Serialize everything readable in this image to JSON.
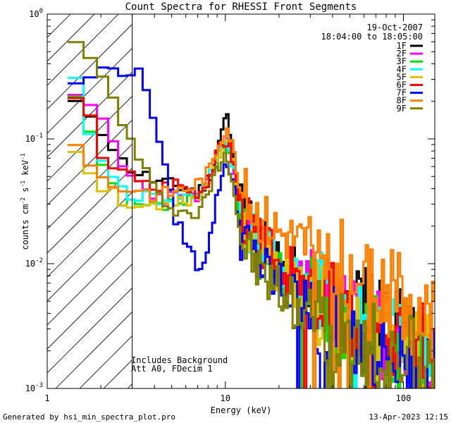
{
  "chart_data": {
    "type": "line",
    "title": "Count Spectra for RHESSI Front Segments",
    "xlabel": "Energy (keV)",
    "ylabel_parts": {
      "a": "counts cm",
      "b": "-2",
      "c": " s",
      "d": "-1",
      "e": " keV",
      "f": "-1"
    },
    "xscale": "log",
    "yscale": "log",
    "xlim": [
      1.0,
      150.0
    ],
    "ylim": [
      0.001,
      1.0
    ],
    "x_ticks": [
      {
        "value": 1,
        "label": "1"
      },
      {
        "value": 10,
        "label": "10"
      },
      {
        "value": 100,
        "label": "100"
      }
    ],
    "y_ticks": [
      {
        "value": 0.001,
        "base": "10",
        "exp": "-3"
      },
      {
        "value": 0.01,
        "base": "10",
        "exp": "-2"
      },
      {
        "value": 0.1,
        "base": "10",
        "exp": "-1"
      },
      {
        "value": 1.0,
        "base": "10",
        "exp": "0"
      }
    ],
    "hatch_region_kev": [
      1.0,
      3.0
    ],
    "date": "19-Oct-2007",
    "time_range": "18:04:00 to 18:05:00",
    "annotations": [
      "Includes Background",
      "Att A0, FDecim 1"
    ],
    "legend_position": "top-right",
    "series": [
      {
        "name": "1F",
        "color": "#000000",
        "seed": 11,
        "points": [
          [
            1.3,
            0.18
          ],
          [
            1.6,
            0.16
          ],
          [
            2.0,
            0.11
          ],
          [
            2.5,
            0.065
          ],
          [
            3.0,
            0.055
          ],
          [
            4.0,
            0.045
          ],
          [
            5.0,
            0.042
          ],
          [
            6.0,
            0.04
          ],
          [
            7.0,
            0.038
          ],
          [
            8.0,
            0.05
          ],
          [
            9.0,
            0.09
          ],
          [
            10.0,
            0.16
          ],
          [
            11.0,
            0.07
          ],
          [
            12.0,
            0.03
          ],
          [
            15.0,
            0.017
          ],
          [
            20.0,
            0.011
          ],
          [
            30.0,
            0.007
          ],
          [
            40.0,
            0.005
          ],
          [
            50.0,
            0.0045
          ],
          [
            60.0,
            0.004
          ],
          [
            80.0,
            0.0035
          ],
          [
            100.0,
            0.0032
          ],
          [
            120.0,
            0.0026
          ],
          [
            140.0,
            0.0022
          ]
        ]
      },
      {
        "name": "2F",
        "color": "#ff00ff",
        "seed": 23,
        "points": [
          [
            1.3,
            0.2
          ],
          [
            1.6,
            0.17
          ],
          [
            2.0,
            0.13
          ],
          [
            2.5,
            0.06
          ],
          [
            3.0,
            0.045
          ],
          [
            4.0,
            0.035
          ],
          [
            5.0,
            0.034
          ],
          [
            6.0,
            0.033
          ],
          [
            7.0,
            0.033
          ],
          [
            8.0,
            0.045
          ],
          [
            9.0,
            0.075
          ],
          [
            10.0,
            0.1
          ],
          [
            11.0,
            0.06
          ],
          [
            12.0,
            0.025
          ],
          [
            15.0,
            0.014
          ],
          [
            20.0,
            0.009
          ],
          [
            30.0,
            0.006
          ],
          [
            40.0,
            0.0042
          ],
          [
            50.0,
            0.0036
          ],
          [
            60.0,
            0.003
          ],
          [
            80.0,
            0.0026
          ],
          [
            100.0,
            0.0022
          ],
          [
            120.0,
            0.0018
          ],
          [
            140.0,
            0.0016
          ]
        ]
      },
      {
        "name": "3F",
        "color": "#00e000",
        "seed": 37,
        "points": [
          [
            1.3,
            0.21
          ],
          [
            1.6,
            0.1
          ],
          [
            2.0,
            0.05
          ],
          [
            2.5,
            0.03
          ],
          [
            3.0,
            0.028
          ],
          [
            4.0,
            0.028
          ],
          [
            5.0,
            0.03
          ],
          [
            6.0,
            0.031
          ],
          [
            7.0,
            0.032
          ],
          [
            8.0,
            0.045
          ],
          [
            9.0,
            0.075
          ],
          [
            10.0,
            0.09
          ],
          [
            11.0,
            0.055
          ],
          [
            12.0,
            0.024
          ],
          [
            15.0,
            0.013
          ],
          [
            20.0,
            0.0085
          ],
          [
            30.0,
            0.0055
          ],
          [
            40.0,
            0.004
          ],
          [
            50.0,
            0.0035
          ],
          [
            60.0,
            0.003
          ],
          [
            80.0,
            0.0025
          ],
          [
            100.0,
            0.0021
          ],
          [
            120.0,
            0.0018
          ],
          [
            140.0,
            0.0015
          ]
        ]
      },
      {
        "name": "4F",
        "color": "#00ffff",
        "seed": 41,
        "points": [
          [
            1.3,
            0.27
          ],
          [
            1.6,
            0.12
          ],
          [
            2.0,
            0.055
          ],
          [
            2.5,
            0.04
          ],
          [
            3.0,
            0.035
          ],
          [
            4.0,
            0.033
          ],
          [
            5.0,
            0.035
          ],
          [
            6.0,
            0.035
          ],
          [
            7.0,
            0.036
          ],
          [
            8.0,
            0.05
          ],
          [
            9.0,
            0.08
          ],
          [
            10.0,
            0.1
          ],
          [
            11.0,
            0.06
          ],
          [
            12.0,
            0.026
          ],
          [
            15.0,
            0.014
          ],
          [
            20.0,
            0.009
          ],
          [
            30.0,
            0.006
          ],
          [
            40.0,
            0.0045
          ],
          [
            50.0,
            0.0038
          ],
          [
            60.0,
            0.0032
          ],
          [
            80.0,
            0.0028
          ],
          [
            100.0,
            0.0024
          ],
          [
            120.0,
            0.002
          ],
          [
            140.0,
            0.0017
          ]
        ]
      },
      {
        "name": "5F",
        "color": "#e0c000",
        "seed": 53,
        "points": [
          [
            1.3,
            0.09
          ],
          [
            1.6,
            0.05
          ],
          [
            2.0,
            0.04
          ],
          [
            2.5,
            0.03
          ],
          [
            3.0,
            0.028
          ],
          [
            4.0,
            0.03
          ],
          [
            5.0,
            0.032
          ],
          [
            6.0,
            0.033
          ],
          [
            7.0,
            0.034
          ],
          [
            8.0,
            0.048
          ],
          [
            9.0,
            0.078
          ],
          [
            10.0,
            0.1
          ],
          [
            11.0,
            0.06
          ],
          [
            12.0,
            0.024
          ],
          [
            15.0,
            0.013
          ],
          [
            20.0,
            0.009
          ],
          [
            30.0,
            0.0055
          ],
          [
            40.0,
            0.0042
          ],
          [
            50.0,
            0.0036
          ],
          [
            60.0,
            0.003
          ],
          [
            80.0,
            0.0026
          ],
          [
            100.0,
            0.0022
          ],
          [
            120.0,
            0.0019
          ],
          [
            140.0,
            0.0016
          ]
        ]
      },
      {
        "name": "6F",
        "color": "#ff0000",
        "seed": 67,
        "points": [
          [
            1.3,
            0.2
          ],
          [
            1.6,
            0.14
          ],
          [
            2.0,
            0.065
          ],
          [
            2.5,
            0.06
          ],
          [
            3.0,
            0.045
          ],
          [
            4.0,
            0.04
          ],
          [
            5.0,
            0.045
          ],
          [
            6.0,
            0.04
          ],
          [
            7.0,
            0.038
          ],
          [
            8.0,
            0.05
          ],
          [
            9.0,
            0.08
          ],
          [
            10.0,
            0.1
          ],
          [
            11.0,
            0.065
          ],
          [
            12.0,
            0.028
          ],
          [
            15.0,
            0.015
          ],
          [
            20.0,
            0.01
          ],
          [
            30.0,
            0.0065
          ],
          [
            40.0,
            0.005
          ],
          [
            50.0,
            0.0042
          ],
          [
            60.0,
            0.0036
          ],
          [
            80.0,
            0.003
          ],
          [
            100.0,
            0.0026
          ],
          [
            120.0,
            0.0022
          ],
          [
            140.0,
            0.0019
          ]
        ]
      },
      {
        "name": "7F",
        "color": "#0000ff",
        "seed": 79,
        "points": [
          [
            1.3,
            0.26
          ],
          [
            1.6,
            0.32
          ],
          [
            2.0,
            0.36
          ],
          [
            2.5,
            0.36
          ],
          [
            3.0,
            0.35
          ],
          [
            3.5,
            0.24
          ],
          [
            4.0,
            0.12
          ],
          [
            4.5,
            0.05
          ],
          [
            5.0,
            0.025
          ],
          [
            6.0,
            0.014
          ],
          [
            7.0,
            0.009
          ],
          [
            8.0,
            0.015
          ],
          [
            9.0,
            0.04
          ],
          [
            10.0,
            0.07
          ],
          [
            11.0,
            0.04
          ],
          [
            12.0,
            0.018
          ],
          [
            15.0,
            0.01
          ],
          [
            20.0,
            0.0065
          ],
          [
            30.0,
            0.0042
          ],
          [
            40.0,
            0.0034
          ],
          [
            50.0,
            0.003
          ],
          [
            60.0,
            0.0026
          ],
          [
            80.0,
            0.0022
          ],
          [
            100.0,
            0.0019
          ],
          [
            120.0,
            0.0016
          ],
          [
            140.0,
            0.0014
          ]
        ]
      },
      {
        "name": "8F",
        "color": "#ff8000",
        "seed": 83,
        "points": [
          [
            1.3,
            0.1
          ],
          [
            1.6,
            0.06
          ],
          [
            2.0,
            0.045
          ],
          [
            2.5,
            0.04
          ],
          [
            3.0,
            0.04
          ],
          [
            4.0,
            0.035
          ],
          [
            5.0,
            0.038
          ],
          [
            6.0,
            0.04
          ],
          [
            7.0,
            0.045
          ],
          [
            8.0,
            0.055
          ],
          [
            9.0,
            0.09
          ],
          [
            10.0,
            0.13
          ],
          [
            11.0,
            0.08
          ],
          [
            12.0,
            0.04
          ],
          [
            15.0,
            0.025
          ],
          [
            20.0,
            0.018
          ],
          [
            30.0,
            0.014
          ],
          [
            40.0,
            0.011
          ],
          [
            50.0,
            0.009
          ],
          [
            60.0,
            0.0075
          ],
          [
            80.0,
            0.006
          ],
          [
            100.0,
            0.0048
          ],
          [
            120.0,
            0.004
          ],
          [
            140.0,
            0.0032
          ]
        ]
      },
      {
        "name": "9F",
        "color": "#808000",
        "seed": 97,
        "points": [
          [
            1.3,
            0.55
          ],
          [
            1.6,
            0.42
          ],
          [
            2.0,
            0.28
          ],
          [
            2.5,
            0.14
          ],
          [
            3.0,
            0.075
          ],
          [
            4.0,
            0.035
          ],
          [
            5.0,
            0.028
          ],
          [
            6.0,
            0.025
          ],
          [
            7.0,
            0.025
          ],
          [
            8.0,
            0.04
          ],
          [
            9.0,
            0.06
          ],
          [
            10.0,
            0.08
          ],
          [
            11.0,
            0.04
          ],
          [
            12.0,
            0.016
          ],
          [
            15.0,
            0.009
          ],
          [
            20.0,
            0.006
          ],
          [
            30.0,
            0.004
          ],
          [
            40.0,
            0.0032
          ],
          [
            50.0,
            0.0027
          ],
          [
            60.0,
            0.0024
          ],
          [
            80.0,
            0.002
          ],
          [
            100.0,
            0.0017
          ],
          [
            120.0,
            0.0015
          ],
          [
            140.0,
            0.0013
          ]
        ]
      }
    ]
  },
  "footer": {
    "generated_by": "Generated by hsi_min_spectra_plot.pro",
    "timestamp": "13-Apr-2023 12:15"
  }
}
